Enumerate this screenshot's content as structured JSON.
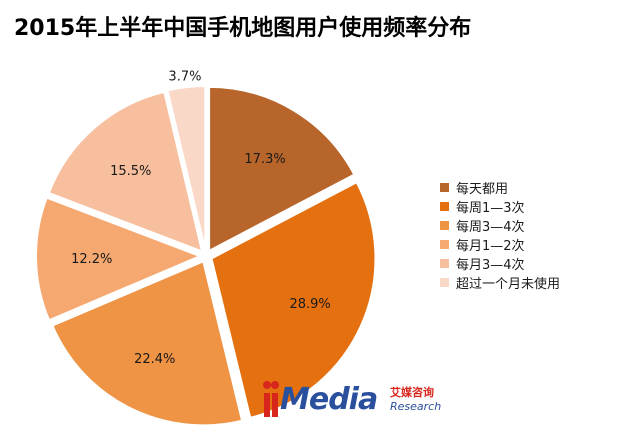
{
  "chart_data": {
    "type": "pie",
    "title": "2015年上半年中国手机地图用户使用频率分布",
    "categories": [
      "每天都用",
      "每周1—3次",
      "每周3—4次",
      "每月1—2次",
      "每月3—4次",
      "超过一个月未使用"
    ],
    "values": [
      17.3,
      28.9,
      22.4,
      12.2,
      15.5,
      3.7
    ],
    "value_labels": [
      "17.3%",
      "28.9%",
      "22.4%",
      "12.2%",
      "15.5%",
      "3.7%"
    ],
    "colors": [
      "#b7652a",
      "#e5700f",
      "#ef9344",
      "#f5a870",
      "#f7bf9d",
      "#f9d8c8"
    ],
    "exploded": true,
    "legend_position": "right"
  },
  "logo": {
    "word": "Media",
    "cn_name": "艾媒咨询",
    "en_name": "Research"
  }
}
